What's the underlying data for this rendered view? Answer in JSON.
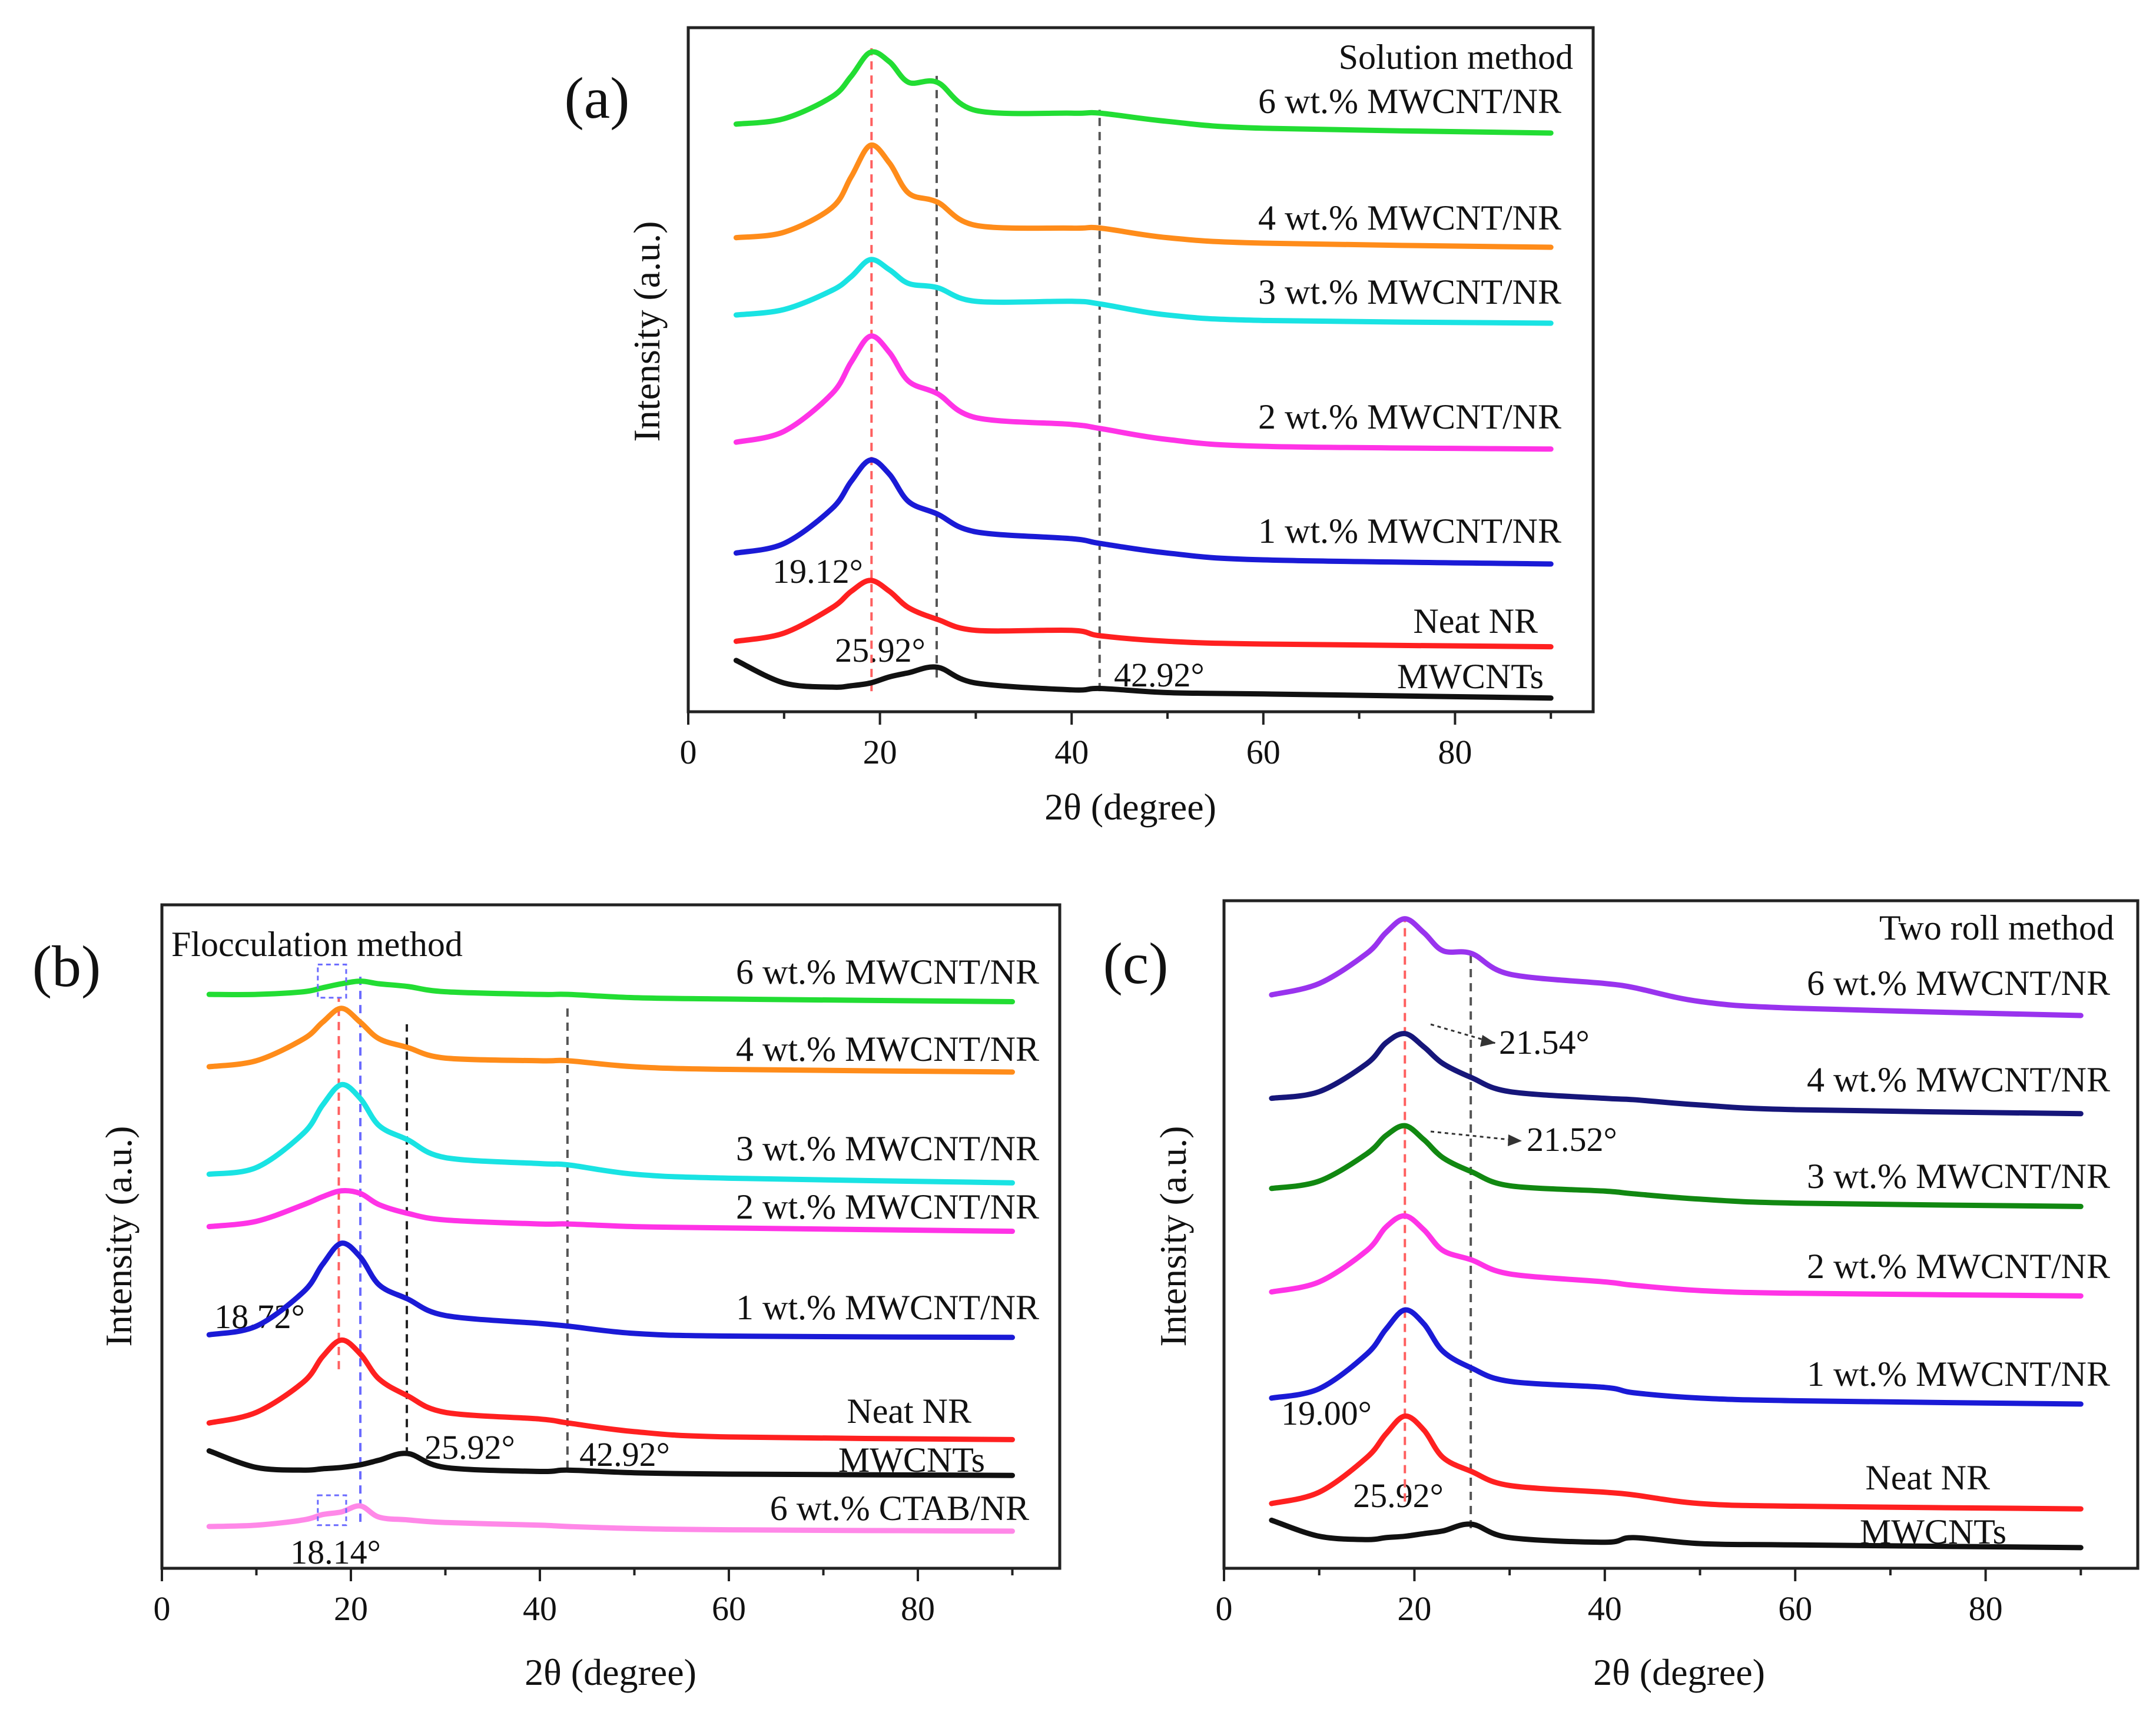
{
  "chart_data": [
    {
      "type": "line",
      "panel": "(a)",
      "title": "Solution method",
      "xlabel": "2θ (degree)",
      "ylabel": "Intensity (a.u.)",
      "xlim": [
        0,
        94
      ],
      "ylim": [
        0,
        100
      ],
      "xticks": [
        "0",
        "20",
        "40",
        "60",
        "80"
      ],
      "xtick_values": [
        0,
        20,
        40,
        60,
        80
      ],
      "x": [
        5,
        10,
        15,
        17,
        19,
        21,
        23,
        26,
        30,
        40,
        43,
        50,
        60,
        90
      ],
      "series": [
        {
          "name": "6 wt.% MWCNT/NR",
          "color": "#22dd33",
          "y": [
            85.9,
            86.7,
            89.9,
            92.9,
            96.4,
            95,
            92,
            92,
            87.9,
            87.5,
            87.5,
            86.3,
            85.3,
            84.6
          ]
        },
        {
          "name": "4 wt.% MWCNT/NR",
          "color": "#ff8c1a",
          "y": [
            69.3,
            70.1,
            73.7,
            78.2,
            82.8,
            80.2,
            75.8,
            74.5,
            71.1,
            70.7,
            70.7,
            69.3,
            68.5,
            67.9
          ]
        },
        {
          "name": "3 wt.% MWCNT/NR",
          "color": "#19e3e3",
          "y": [
            58.0,
            58.8,
            61.6,
            63.6,
            66.1,
            64.6,
            62.6,
            62.0,
            60.0,
            60.0,
            59.6,
            58.0,
            57.2,
            56.8
          ]
        },
        {
          "name": "2 wt.% MWCNT/NR",
          "color": "#ff33e6",
          "y": [
            39.4,
            41.0,
            46.5,
            51.1,
            54.9,
            52.5,
            48.3,
            46.5,
            43.0,
            42.0,
            41.4,
            39.8,
            38.8,
            38.4
          ]
        },
        {
          "name": "1 wt.% MWCNT/NR",
          "color": "#1a1ad6",
          "y": [
            23.2,
            24.6,
            29.7,
            33.7,
            36.8,
            34.7,
            30.7,
            28.9,
            26.3,
            25.3,
            24.6,
            23.2,
            22.2,
            21.6
          ]
        },
        {
          "name": "Neat NR",
          "color": "#ff2020",
          "y": [
            10.3,
            11.5,
            15.2,
            17.6,
            19.2,
            17.6,
            15.2,
            13.5,
            11.9,
            11.9,
            11.1,
            10.3,
            9.9,
            9.5
          ]
        },
        {
          "name": "MWCNTs",
          "color": "#111111",
          "y": [
            7.5,
            4.2,
            3.6,
            3.8,
            4.2,
            5.1,
            5.7,
            6.5,
            4.2,
            3.2,
            3.4,
            2.8,
            2.6,
            2.0
          ]
        }
      ],
      "reference_lines": [
        {
          "x": 19.12,
          "color": "#ff6060",
          "y_range": [
            3,
            97
          ]
        },
        {
          "x": 25.92,
          "color": "#555555",
          "y_range": [
            5,
            93
          ]
        },
        {
          "x": 42.92,
          "color": "#555555",
          "y_range": [
            3,
            88
          ]
        }
      ],
      "annotations": [
        "19.12°",
        "25.92°",
        "42.92°"
      ]
    },
    {
      "type": "line",
      "panel": "(b)",
      "title": "Flocculation method",
      "xlabel": "2θ (degree)",
      "ylabel": "Intensity (a.u.)",
      "xlim": [
        0,
        95
      ],
      "ylim": [
        0,
        100
      ],
      "xticks": [
        "0",
        "20",
        "40",
        "60",
        "80"
      ],
      "xtick_values": [
        0,
        20,
        40,
        60,
        80
      ],
      "x": [
        5,
        10,
        15,
        17,
        19,
        21,
        23,
        26,
        30,
        40,
        43,
        50,
        60,
        90
      ],
      "series": [
        {
          "name": "6 wt.% MWCNT/NR",
          "color": "#22dd33",
          "y": [
            86.5,
            86.5,
            86.9,
            87.5,
            88.1,
            88.5,
            88.1,
            87.7,
            86.9,
            86.5,
            86.5,
            86.0,
            85.8,
            85.4
          ]
        },
        {
          "name": "4 wt.% MWCNT/NR",
          "color": "#ff8c1a",
          "y": [
            75.6,
            76.5,
            79.8,
            82.3,
            84.4,
            82.3,
            79.8,
            78.5,
            76.9,
            76.5,
            76.5,
            75.6,
            75.2,
            74.8
          ]
        },
        {
          "name": "3 wt.% MWCNT/NR",
          "color": "#19e3e3",
          "y": [
            59.4,
            60.4,
            65.6,
            69.8,
            72.9,
            70.8,
            66.7,
            64.6,
            61.9,
            61.0,
            60.8,
            59.4,
            58.8,
            58.1
          ]
        },
        {
          "name": "2 wt.% MWCNT/NR",
          "color": "#ff33e6",
          "y": [
            51.5,
            52.3,
            54.8,
            56.0,
            56.9,
            56.5,
            54.8,
            53.5,
            52.5,
            51.9,
            51.9,
            51.5,
            51.3,
            50.8
          ]
        },
        {
          "name": "1 wt.% MWCNT/NR",
          "color": "#1a1ad6",
          "y": [
            35.2,
            36.5,
            41.7,
            45.8,
            49.0,
            46.9,
            42.7,
            40.6,
            38.1,
            36.9,
            36.5,
            35.4,
            35.0,
            34.8
          ]
        },
        {
          "name": "Neat NR",
          "color": "#ff2020",
          "y": [
            21.9,
            23.5,
            28.1,
            31.9,
            34.4,
            32.3,
            28.5,
            26.0,
            23.5,
            22.5,
            21.9,
            20.6,
            19.8,
            19.4
          ]
        },
        {
          "name": "MWCNTs",
          "color": "#111111",
          "y": [
            17.7,
            15.2,
            14.8,
            15.0,
            15.2,
            15.6,
            16.3,
            17.3,
            15.2,
            14.6,
            14.8,
            14.4,
            14.2,
            14.0
          ]
        },
        {
          "name": "6 wt.% CTAB/NR",
          "color": "#ff88e8",
          "y": [
            6.3,
            6.5,
            7.3,
            8.1,
            8.5,
            9.4,
            7.7,
            7.3,
            6.9,
            6.5,
            6.3,
            6.0,
            5.8,
            5.6
          ]
        }
      ],
      "reference_lines": [
        {
          "x": 18.72,
          "color": "#ff6060",
          "y_range": [
            30,
            86
          ]
        },
        {
          "x": 21.0,
          "color": "#6a6aff",
          "y_range": [
            7,
            90
          ]
        },
        {
          "x": 25.92,
          "color": "#222222",
          "y_range": [
            17,
            82
          ]
        },
        {
          "x": 42.92,
          "color": "#555555",
          "y_range": [
            15,
            85
          ]
        }
      ],
      "annotations": [
        "18.72°",
        "25.92°",
        "42.92°",
        "18.14°"
      ]
    },
    {
      "type": "line",
      "panel": "(c)",
      "title": "Two roll method",
      "xlabel": "2θ (degree)",
      "ylabel": "Intensity (a.u.)",
      "xlim": [
        0,
        96
      ],
      "ylim": [
        0,
        100
      ],
      "xticks": [
        "0",
        "20",
        "40",
        "60",
        "80"
      ],
      "xtick_values": [
        0,
        20,
        40,
        60,
        80
      ],
      "x": [
        5,
        10,
        15,
        17,
        19,
        21,
        23,
        26,
        30,
        40,
        43,
        50,
        60,
        90
      ],
      "series": [
        {
          "name": "6 wt.% MWCNT/NR",
          "color": "#9933ee",
          "y": [
            85.9,
            87.6,
            92.1,
            95.2,
            97.3,
            95.2,
            92.5,
            92.1,
            89.0,
            87.6,
            87.0,
            84.9,
            83.9,
            82.8
          ]
        },
        {
          "name": "4 wt.% MWCNT/NR",
          "color": "#16167a",
          "y": [
            70.4,
            71.4,
            75.6,
            78.7,
            80.1,
            78.1,
            75.6,
            73.5,
            71.4,
            70.4,
            70.2,
            69.4,
            68.7,
            68.1
          ]
        },
        {
          "name": "3 wt.% MWCNT/NR",
          "color": "#118811",
          "y": [
            56.9,
            58.0,
            62.1,
            64.8,
            66.3,
            64.2,
            61.5,
            59.4,
            57.3,
            56.5,
            56.1,
            55.3,
            54.7,
            54.2
          ]
        },
        {
          "name": "2 wt.% MWCNT/NR",
          "color": "#ff33e6",
          "y": [
            41.4,
            42.9,
            47.6,
            51.1,
            52.8,
            50.7,
            47.6,
            46.2,
            44.1,
            42.9,
            42.4,
            41.6,
            41.2,
            40.8
          ]
        },
        {
          "name": "1 wt.% MWCNT/NR",
          "color": "#1a1ad6",
          "y": [
            25.5,
            26.9,
            32.1,
            35.8,
            38.7,
            36.6,
            32.5,
            30.0,
            28.0,
            27.1,
            26.3,
            25.5,
            25.1,
            24.6
          ]
        },
        {
          "name": "Neat NR",
          "color": "#ff2020",
          "y": [
            9.7,
            11.4,
            16.6,
            20.1,
            22.8,
            20.7,
            16.6,
            14.5,
            12.4,
            11.4,
            11.0,
            9.7,
            9.3,
            8.9
          ]
        },
        {
          "name": "MWCNTs",
          "color": "#111111",
          "y": [
            7.2,
            4.8,
            4.3,
            4.6,
            4.8,
            5.2,
            5.6,
            6.6,
            4.6,
            3.9,
            4.6,
            3.7,
            3.5,
            3.1
          ]
        }
      ],
      "reference_lines": [
        {
          "x": 19.0,
          "color": "#ff6060",
          "y_range": [
            10,
            97
          ]
        },
        {
          "x": 25.92,
          "color": "#555555",
          "y_range": [
            6,
            92
          ]
        }
      ],
      "annotations": [
        "21.54°",
        "21.52°",
        "19.00°",
        "25.92°"
      ]
    }
  ]
}
